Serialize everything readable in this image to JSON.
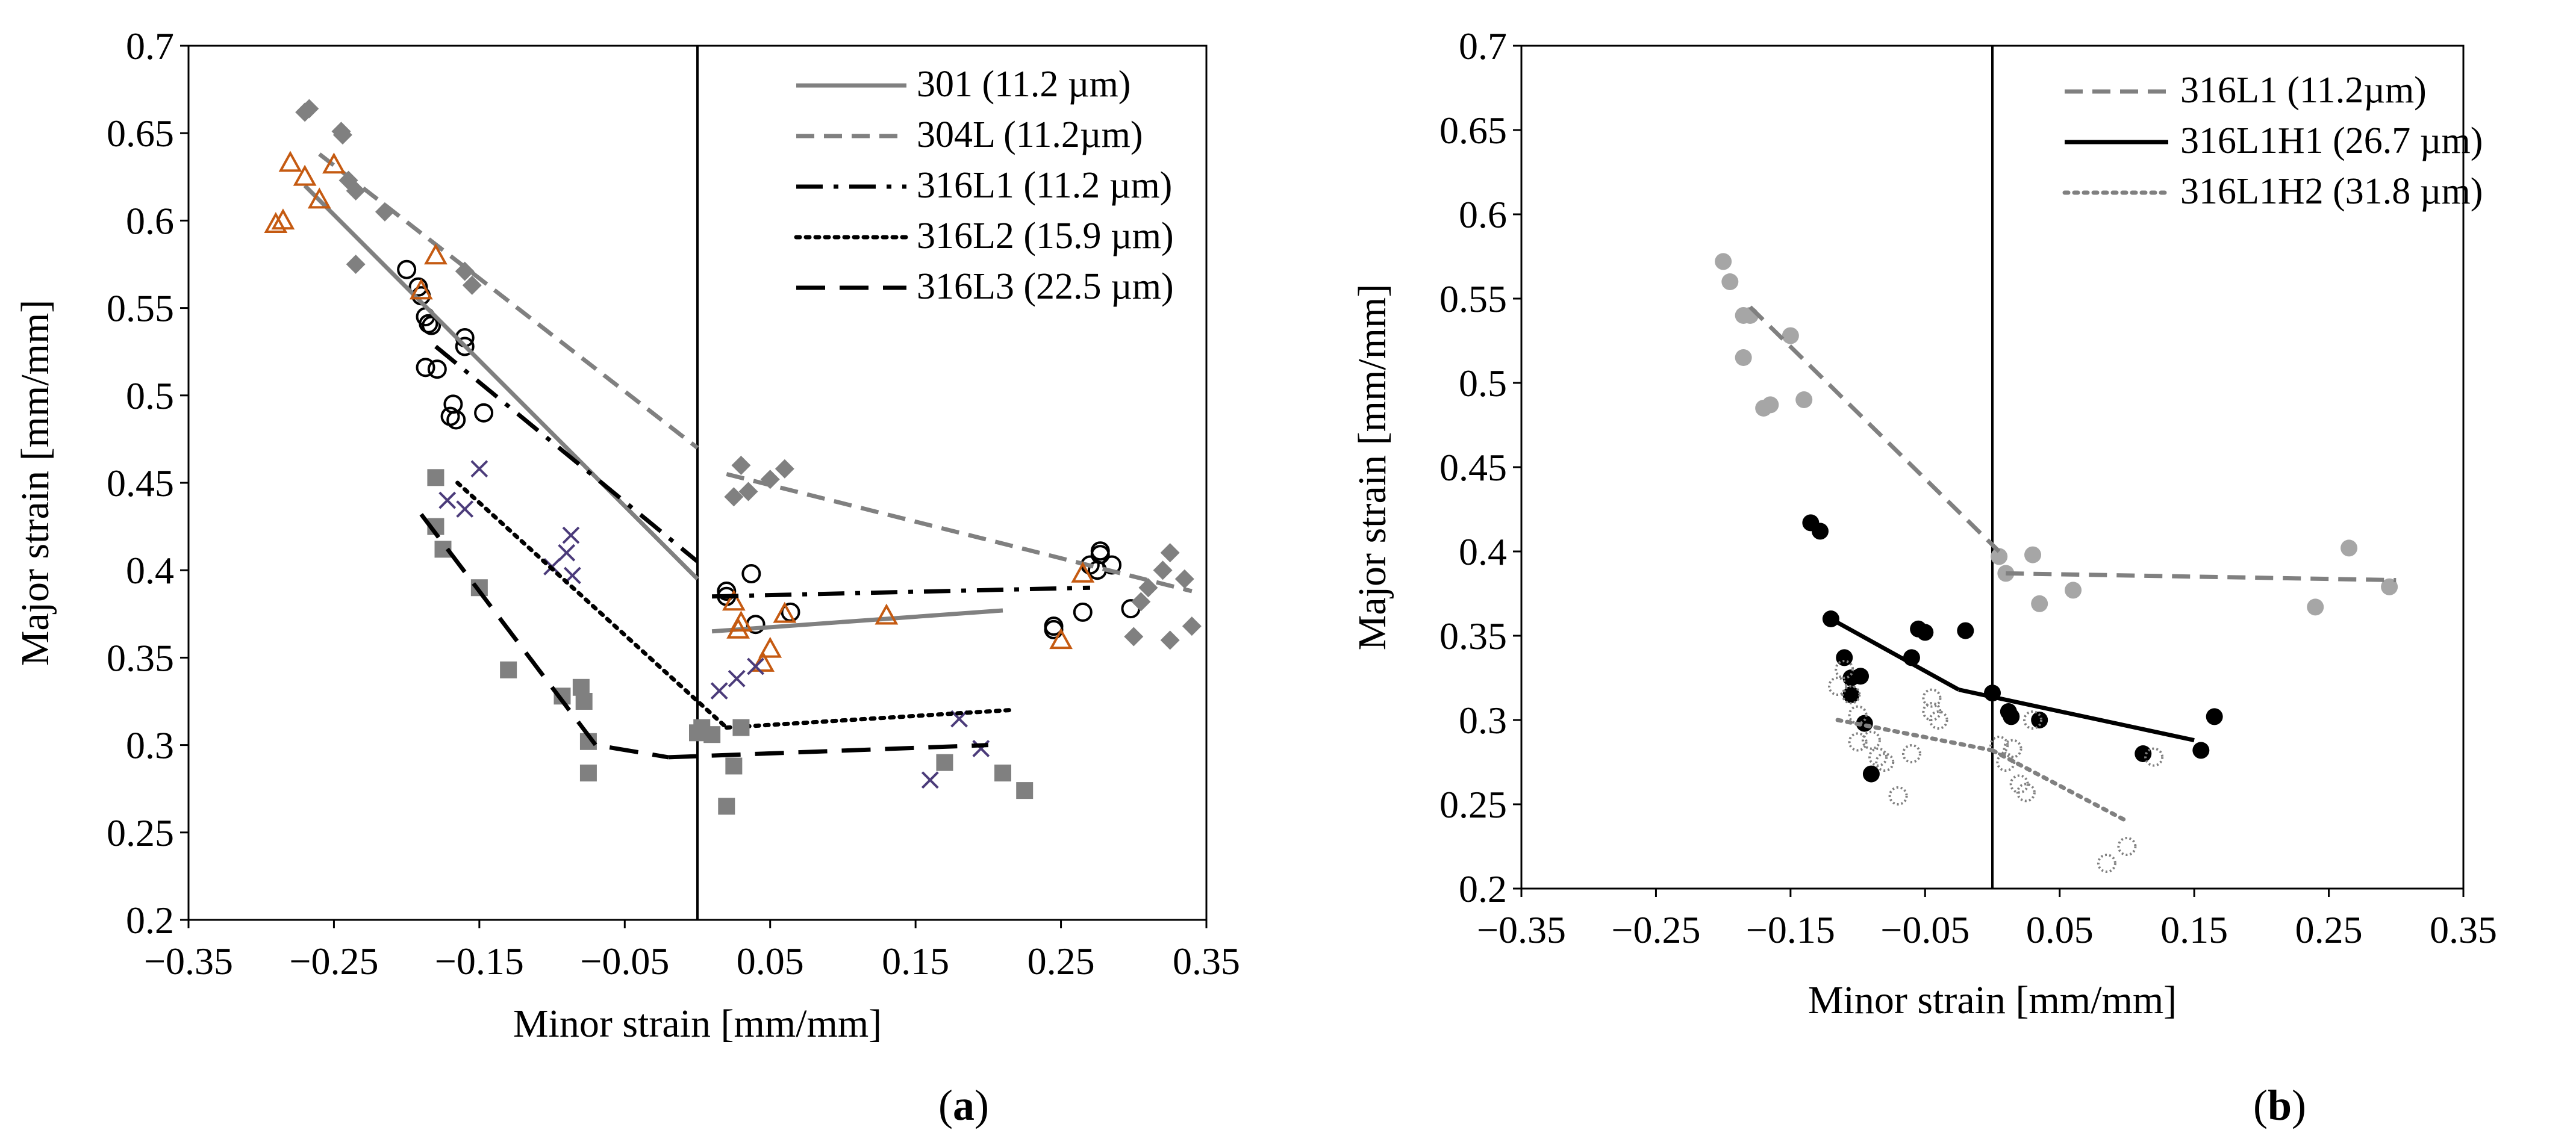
{
  "chart_data": [
    {
      "type": "scatter",
      "panel_label": "(a)",
      "panel_letter": "a",
      "xlabel": "Minor strain [mm/mm]",
      "ylabel": "Major strain [mm/mm]",
      "xlim": [
        -0.35,
        0.35
      ],
      "ylim": [
        0.2,
        0.7
      ],
      "xticks": [
        -0.35,
        -0.25,
        -0.15,
        -0.05,
        0.05,
        0.15,
        0.25,
        0.35
      ],
      "xtick_labels": [
        "−0.35",
        "−0.25",
        "−0.15",
        "−0.05",
        "0.05",
        "0.15",
        "0.25",
        "0.35"
      ],
      "yticks": [
        0.2,
        0.25,
        0.3,
        0.35,
        0.4,
        0.45,
        0.5,
        0.55,
        0.6,
        0.65,
        0.7
      ],
      "ytick_labels": [
        "0.2",
        "0.25",
        "0.3",
        "0.35",
        "0.4",
        "0.45",
        "0.5",
        "0.55",
        "0.6",
        "0.65",
        "0.7"
      ],
      "grid": false,
      "legend_position": "top-right",
      "series": [
        {
          "name": "301  (11.2 µm)",
          "color": "#808080",
          "line": "solid",
          "marker": "circle-open",
          "marker_color": "#000000",
          "fit_left": [
            [
              -0.27,
              0.62
            ],
            [
              0.0,
              0.395
            ]
          ],
          "fit_right": [
            [
              0.01,
              0.365
            ],
            [
              0.21,
              0.377
            ]
          ],
          "points": [
            [
              -0.2,
              0.572
            ],
            [
              -0.192,
              0.562
            ],
            [
              -0.19,
              0.557
            ],
            [
              -0.187,
              0.545
            ],
            [
              -0.185,
              0.541
            ],
            [
              -0.183,
              0.54
            ],
            [
              -0.187,
              0.516
            ],
            [
              -0.179,
              0.515
            ],
            [
              -0.16,
              0.533
            ],
            [
              -0.16,
              0.528
            ],
            [
              -0.168,
              0.495
            ],
            [
              -0.17,
              0.488
            ],
            [
              -0.166,
              0.486
            ],
            [
              -0.147,
              0.49
            ],
            [
              0.02,
              0.388
            ],
            [
              0.02,
              0.385
            ],
            [
              0.037,
              0.398
            ],
            [
              0.04,
              0.369
            ],
            [
              0.064,
              0.376
            ],
            [
              0.245,
              0.368
            ],
            [
              0.245,
              0.366
            ],
            [
              0.265,
              0.376
            ],
            [
              0.27,
              0.403
            ],
            [
              0.277,
              0.411
            ],
            [
              0.277,
              0.409
            ],
            [
              0.285,
              0.403
            ],
            [
              0.275,
              0.4
            ],
            [
              0.298,
              0.378
            ]
          ]
        },
        {
          "name": "304L (11.2µm)",
          "color": "#808080",
          "line": "dashed",
          "marker": "diamond",
          "marker_color": "#808080",
          "fit_left": [
            [
              -0.26,
              0.638
            ],
            [
              0.0,
              0.47
            ]
          ],
          "fit_right": [
            [
              0.02,
              0.455
            ],
            [
              0.34,
              0.388
            ]
          ],
          "points": [
            [
              -0.27,
              0.662
            ],
            [
              -0.267,
              0.664
            ],
            [
              -0.245,
              0.651
            ],
            [
              -0.244,
              0.649
            ],
            [
              -0.24,
              0.623
            ],
            [
              -0.235,
              0.617
            ],
            [
              -0.215,
              0.605
            ],
            [
              -0.235,
              0.575
            ],
            [
              -0.16,
              0.571
            ],
            [
              -0.155,
              0.563
            ],
            [
              0.03,
              0.46
            ],
            [
              0.025,
              0.442
            ],
            [
              0.035,
              0.445
            ],
            [
              0.05,
              0.452
            ],
            [
              0.06,
              0.458
            ],
            [
              0.31,
              0.39
            ],
            [
              0.32,
              0.4
            ],
            [
              0.325,
              0.41
            ],
            [
              0.305,
              0.382
            ],
            [
              0.3,
              0.362
            ],
            [
              0.325,
              0.36
            ],
            [
              0.34,
              0.368
            ],
            [
              0.335,
              0.395
            ]
          ]
        },
        {
          "name": "316L1 (11.2 µm)",
          "color": "#000000",
          "line": "dash-dot",
          "marker": "triangle-open",
          "marker_color": "#c55a11",
          "fit_left": [
            [
              -0.18,
              0.528
            ],
            [
              0.0,
              0.405
            ]
          ],
          "fit_right": [
            [
              0.01,
              0.385
            ],
            [
              0.27,
              0.39
            ]
          ],
          "points": [
            [
              -0.29,
              0.598
            ],
            [
              -0.285,
              0.6
            ],
            [
              -0.28,
              0.633
            ],
            [
              -0.27,
              0.625
            ],
            [
              -0.26,
              0.612
            ],
            [
              -0.25,
              0.632
            ],
            [
              -0.19,
              0.56
            ],
            [
              -0.18,
              0.58
            ],
            [
              0.025,
              0.382
            ],
            [
              0.028,
              0.366
            ],
            [
              0.03,
              0.37
            ],
            [
              0.045,
              0.347
            ],
            [
              0.05,
              0.355
            ],
            [
              0.06,
              0.375
            ],
            [
              0.13,
              0.374
            ],
            [
              0.25,
              0.36
            ],
            [
              0.265,
              0.398
            ]
          ]
        },
        {
          "name": "316L2 (15.9 µm)",
          "color": "#000000",
          "line": "dotted",
          "marker": "cross",
          "marker_color": "#4b3b7a",
          "fit_left": [
            [
              -0.165,
              0.45
            ],
            [
              0.02,
              0.31
            ]
          ],
          "fit_right": [
            [
              0.02,
              0.31
            ],
            [
              0.215,
              0.32
            ]
          ],
          "points": [
            [
              -0.172,
              0.44
            ],
            [
              -0.16,
              0.435
            ],
            [
              -0.15,
              0.458
            ],
            [
              -0.1,
              0.402
            ],
            [
              -0.09,
              0.41
            ],
            [
              -0.087,
              0.42
            ],
            [
              -0.086,
              0.397
            ],
            [
              0.015,
              0.331
            ],
            [
              0.027,
              0.338
            ],
            [
              0.04,
              0.345
            ],
            [
              0.16,
              0.28
            ],
            [
              0.18,
              0.315
            ],
            [
              0.195,
              0.298
            ]
          ]
        },
        {
          "name": "316L3  (22.5 µm)",
          "color": "#000000",
          "line": "long-dashed",
          "marker": "square",
          "marker_color": "#808080",
          "fit_left": [
            [
              -0.19,
              0.432
            ],
            [
              -0.07,
              0.3
            ],
            [
              -0.02,
              0.293
            ]
          ],
          "fit_right": [
            [
              -0.02,
              0.293
            ],
            [
              0.2,
              0.3
            ]
          ],
          "points": [
            [
              -0.18,
              0.453
            ],
            [
              -0.18,
              0.425
            ],
            [
              -0.175,
              0.412
            ],
            [
              -0.15,
              0.39
            ],
            [
              -0.13,
              0.343
            ],
            [
              -0.093,
              0.328
            ],
            [
              -0.08,
              0.333
            ],
            [
              -0.078,
              0.325
            ],
            [
              -0.075,
              0.302
            ],
            [
              -0.075,
              0.284
            ],
            [
              0.0,
              0.307
            ],
            [
              0.003,
              0.31
            ],
            [
              0.01,
              0.306
            ],
            [
              0.02,
              0.265
            ],
            [
              0.025,
              0.288
            ],
            [
              0.03,
              0.31
            ],
            [
              0.17,
              0.29
            ],
            [
              0.21,
              0.284
            ],
            [
              0.225,
              0.274
            ]
          ]
        }
      ]
    },
    {
      "type": "scatter",
      "panel_label": "(b)",
      "panel_letter": "b",
      "xlabel": "Minor strain [mm/mm]",
      "ylabel": "Major strain [mm/mm]",
      "xlim": [
        -0.35,
        0.35
      ],
      "ylim": [
        0.2,
        0.7
      ],
      "xticks": [
        -0.35,
        -0.25,
        -0.15,
        -0.05,
        0.05,
        0.15,
        0.25,
        0.35
      ],
      "xtick_labels": [
        "−0.35",
        "−0.25",
        "−0.15",
        "−0.05",
        "0.05",
        "0.15",
        "0.25",
        "0.35"
      ],
      "yticks": [
        0.2,
        0.25,
        0.3,
        0.35,
        0.4,
        0.45,
        0.5,
        0.55,
        0.6,
        0.65,
        0.7
      ],
      "ytick_labels": [
        "0.2",
        "0.25",
        "0.3",
        "0.35",
        "0.4",
        "0.45",
        "0.5",
        "0.55",
        "0.6",
        "0.65",
        "0.7"
      ],
      "grid": false,
      "legend_position": "top-right",
      "series": [
        {
          "name": "316L1 (11.2µm)",
          "color": "#808080",
          "line": "dashed",
          "marker": "circle",
          "marker_color": "#a6a6a6",
          "fit_left": [
            [
              -0.18,
              0.545
            ],
            [
              0.005,
              0.4
            ]
          ],
          "fit_right": [
            [
              0.01,
              0.387
            ],
            [
              0.3,
              0.383
            ]
          ],
          "points": [
            [
              -0.2,
              0.572
            ],
            [
              -0.195,
              0.56
            ],
            [
              -0.185,
              0.54
            ],
            [
              -0.18,
              0.54
            ],
            [
              -0.185,
              0.515
            ],
            [
              -0.15,
              0.528
            ],
            [
              -0.14,
              0.49
            ],
            [
              -0.17,
              0.485
            ],
            [
              -0.165,
              0.487
            ],
            [
              0.005,
              0.397
            ],
            [
              0.01,
              0.387
            ],
            [
              0.03,
              0.398
            ],
            [
              0.035,
              0.369
            ],
            [
              0.06,
              0.377
            ],
            [
              0.24,
              0.367
            ],
            [
              0.265,
              0.402
            ],
            [
              0.295,
              0.379
            ]
          ]
        },
        {
          "name": "316L1H1 (26.7 µm)",
          "color": "#000000",
          "line": "solid",
          "marker": "circle",
          "marker_color": "#000000",
          "fit_left": [
            [
              -0.12,
              0.36
            ],
            [
              -0.025,
              0.318
            ]
          ],
          "fit_right": [
            [
              -0.025,
              0.318
            ],
            [
              0.15,
              0.288
            ]
          ],
          "points": [
            [
              -0.135,
              0.417
            ],
            [
              -0.128,
              0.412
            ],
            [
              -0.12,
              0.36
            ],
            [
              -0.11,
              0.337
            ],
            [
              -0.105,
              0.325
            ],
            [
              -0.105,
              0.315
            ],
            [
              -0.098,
              0.326
            ],
            [
              -0.095,
              0.298
            ],
            [
              -0.09,
              0.268
            ],
            [
              -0.06,
              0.337
            ],
            [
              -0.055,
              0.354
            ],
            [
              -0.05,
              0.352
            ],
            [
              -0.02,
              0.353
            ],
            [
              0.0,
              0.316
            ],
            [
              0.012,
              0.305
            ],
            [
              0.014,
              0.302
            ],
            [
              0.035,
              0.3
            ],
            [
              0.112,
              0.28
            ],
            [
              0.155,
              0.282
            ],
            [
              0.165,
              0.302
            ]
          ]
        },
        {
          "name": "316L1H2 (31.8 µm)",
          "color": "#808080",
          "line": "dotted",
          "marker": "circle-dotted",
          "marker_color": "#808080",
          "fit_left": [
            [
              -0.115,
              0.3
            ],
            [
              0.0,
              0.282
            ]
          ],
          "fit_right": [
            [
              0.0,
              0.282
            ],
            [
              0.1,
              0.24
            ]
          ],
          "points": [
            [
              -0.115,
              0.32
            ],
            [
              -0.11,
              0.33
            ],
            [
              -0.105,
              0.315
            ],
            [
              -0.1,
              0.303
            ],
            [
              -0.1,
              0.287
            ],
            [
              -0.09,
              0.288
            ],
            [
              -0.085,
              0.278
            ],
            [
              -0.08,
              0.275
            ],
            [
              -0.07,
              0.255
            ],
            [
              -0.06,
              0.28
            ],
            [
              -0.045,
              0.313
            ],
            [
              -0.045,
              0.305
            ],
            [
              -0.04,
              0.3
            ],
            [
              0.005,
              0.285
            ],
            [
              0.01,
              0.275
            ],
            [
              0.015,
              0.283
            ],
            [
              0.02,
              0.262
            ],
            [
              0.025,
              0.257
            ],
            [
              0.03,
              0.3
            ],
            [
              0.085,
              0.215
            ],
            [
              0.1,
              0.225
            ],
            [
              0.12,
              0.278
            ]
          ]
        }
      ]
    }
  ]
}
